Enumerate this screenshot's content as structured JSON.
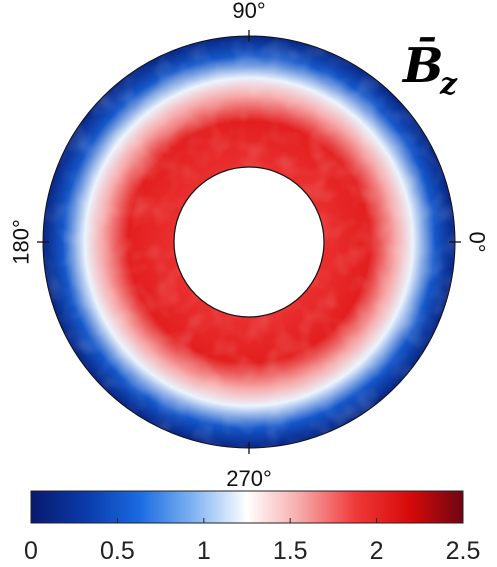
{
  "chart_data": {
    "type": "heatmap",
    "projection": "polar-annulus",
    "title": "B̄",
    "title_subscript": "z",
    "angle_tick_labels": [
      "0°",
      "90°",
      "180°",
      "270°"
    ],
    "angle_ticks_deg": [
      0,
      90,
      180,
      270
    ],
    "colorbar": {
      "min": 0,
      "max": 2.5,
      "tick_values": [
        0,
        0.5,
        1,
        1.5,
        2,
        2.5
      ],
      "tick_labels": [
        "0",
        "0.5",
        "1",
        "1.5",
        "2",
        "2.5"
      ],
      "colormap": [
        "#08196e",
        "#0a3aa8",
        "#1a6ae0",
        "#7fb3f2",
        "#ffffff",
        "#f7a8a8",
        "#f03a3a",
        "#d80a0a",
        "#6e0612"
      ]
    },
    "radial_profile": {
      "r_norm": [
        0.0,
        0.35,
        0.55,
        0.68,
        0.85,
        1.0
      ],
      "value": [
        1.95,
        2.05,
        1.55,
        1.2,
        0.5,
        0.12
      ]
    },
    "grid": false
  }
}
